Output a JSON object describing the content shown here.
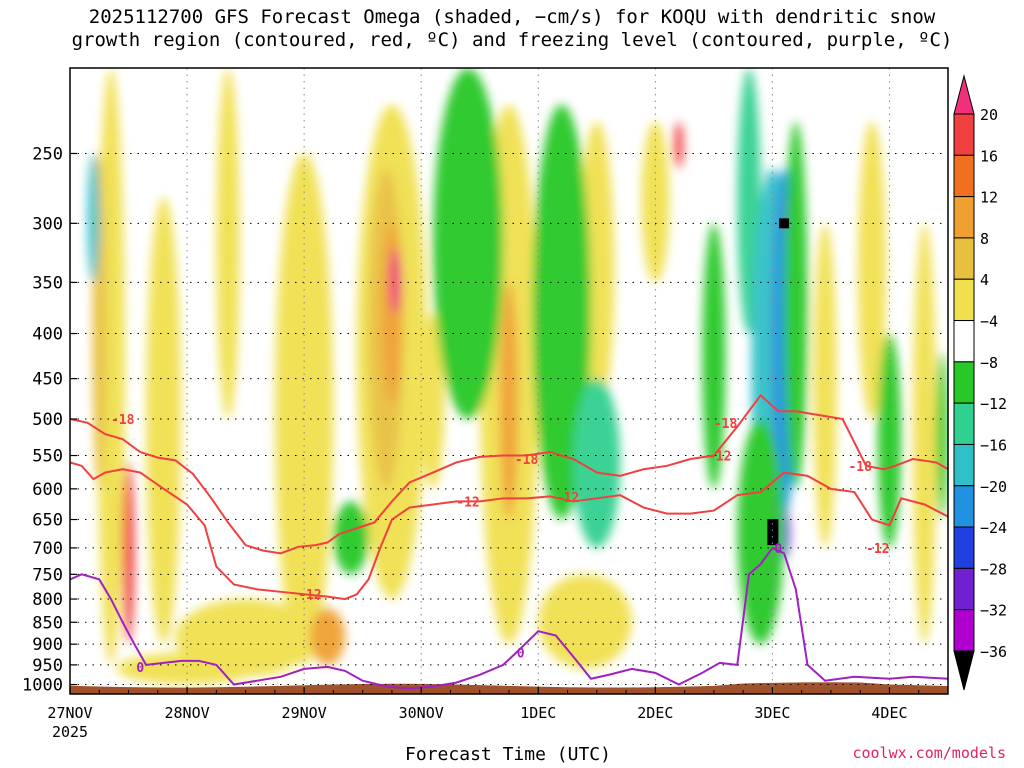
{
  "title_line1": "2025112700 GFS Forecast Omega (shaded, −cm/s) for KOQU with dendritic snow",
  "title_line2": "growth region (contoured, red, ºC) and freezing level (contoured, purple, ºC)",
  "credit": "coolwx.com/models",
  "chart_data": {
    "type": "heatmap",
    "xlabel": "Forecast Time (UTC)",
    "ylabel": "",
    "x_ticks": [
      "27NOV",
      "28NOV",
      "29NOV",
      "30NOV",
      "1DEC",
      "2DEC",
      "3DEC",
      "4DEC"
    ],
    "x_tick_year": "2025",
    "x_range_days": [
      0,
      7.5
    ],
    "y_ticks": [
      250,
      300,
      350,
      400,
      450,
      500,
      550,
      600,
      650,
      700,
      750,
      800,
      850,
      900,
      950,
      1000
    ],
    "y_range_hpa": [
      200,
      1025
    ],
    "y_scale": "log",
    "grid": true,
    "colorbar_labels": [
      "20",
      "16",
      "12",
      "8",
      "4",
      "−4",
      "−8",
      "−12",
      "−16",
      "−20",
      "−24",
      "−28",
      "−32",
      "−36"
    ],
    "colorbar_colors": [
      "#f0307a",
      "#f04040",
      "#f07020",
      "#f0a030",
      "#e8c040",
      "#f0e050",
      "#ffffff",
      "#28c828",
      "#30d090",
      "#30c0c8",
      "#2090e0",
      "#2040e0",
      "#7020d0",
      "#b000d0",
      "#b0b0b0",
      "#000000"
    ],
    "surface_color": "#a0522d",
    "contour_colors": {
      "dgz": "#f04040",
      "freezing": "#a020c0"
    },
    "contours": [
      {
        "label": "-18",
        "color": "#f04040",
        "points": [
          [
            0,
            500
          ],
          [
            0.15,
            505
          ],
          [
            0.3,
            520
          ],
          [
            0.45,
            527
          ],
          [
            0.6,
            545
          ],
          [
            0.75,
            553
          ],
          [
            0.9,
            557
          ],
          [
            1.05,
            577
          ],
          [
            1.2,
            613
          ],
          [
            1.35,
            655
          ],
          [
            1.5,
            695
          ],
          [
            1.65,
            705
          ],
          [
            1.8,
            710
          ],
          [
            1.95,
            698
          ],
          [
            2.1,
            695
          ],
          [
            2.2,
            690
          ],
          [
            2.3,
            675
          ],
          [
            2.45,
            665
          ],
          [
            2.6,
            655
          ],
          [
            2.75,
            620
          ],
          [
            2.9,
            590
          ],
          [
            3.1,
            575
          ],
          [
            3.3,
            560
          ],
          [
            3.5,
            552
          ],
          [
            3.7,
            550
          ],
          [
            3.9,
            550
          ],
          [
            4.1,
            545
          ],
          [
            4.3,
            555
          ],
          [
            4.5,
            575
          ],
          [
            4.7,
            580
          ],
          [
            4.9,
            570
          ],
          [
            5.1,
            565
          ],
          [
            5.3,
            555
          ],
          [
            5.5,
            550
          ],
          [
            5.7,
            510
          ],
          [
            5.9,
            470
          ],
          [
            6.05,
            490
          ],
          [
            6.2,
            490
          ],
          [
            6.4,
            495
          ],
          [
            6.6,
            500
          ],
          [
            6.8,
            565
          ],
          [
            6.95,
            570
          ],
          [
            7.05,
            565
          ],
          [
            7.2,
            555
          ],
          [
            7.4,
            560
          ],
          [
            7.5,
            570
          ]
        ],
        "label_at": [
          [
            0.45,
            500
          ],
          [
            3.9,
            555
          ],
          [
            5.6,
            505
          ],
          [
            6.75,
            565
          ]
        ]
      },
      {
        "label": "-12",
        "color": "#f04040",
        "points": [
          [
            0,
            560
          ],
          [
            0.1,
            565
          ],
          [
            0.2,
            585
          ],
          [
            0.3,
            575
          ],
          [
            0.45,
            570
          ],
          [
            0.6,
            575
          ],
          [
            0.8,
            600
          ],
          [
            1.0,
            625
          ],
          [
            1.15,
            660
          ],
          [
            1.25,
            735
          ],
          [
            1.4,
            770
          ],
          [
            1.6,
            780
          ],
          [
            1.8,
            785
          ],
          [
            2.0,
            790
          ],
          [
            2.2,
            795
          ],
          [
            2.35,
            800
          ],
          [
            2.45,
            790
          ],
          [
            2.55,
            760
          ],
          [
            2.65,
            700
          ],
          [
            2.75,
            650
          ],
          [
            2.9,
            630
          ],
          [
            3.1,
            625
          ],
          [
            3.3,
            620
          ],
          [
            3.5,
            620
          ],
          [
            3.7,
            615
          ],
          [
            3.9,
            615
          ],
          [
            4.1,
            612
          ],
          [
            4.3,
            620
          ],
          [
            4.5,
            615
          ],
          [
            4.7,
            610
          ],
          [
            4.9,
            630
          ],
          [
            5.1,
            640
          ],
          [
            5.3,
            640
          ],
          [
            5.5,
            635
          ],
          [
            5.7,
            610
          ],
          [
            5.9,
            605
          ],
          [
            6.1,
            575
          ],
          [
            6.3,
            580
          ],
          [
            6.5,
            600
          ],
          [
            6.7,
            605
          ],
          [
            6.85,
            650
          ],
          [
            7.0,
            660
          ],
          [
            7.1,
            615
          ],
          [
            7.3,
            625
          ],
          [
            7.5,
            645
          ]
        ],
        "label_at": [
          [
            2.05,
            790
          ],
          [
            3.4,
            620
          ],
          [
            4.25,
            613
          ],
          [
            5.55,
            550
          ],
          [
            6.9,
            700
          ]
        ]
      },
      {
        "label": "0",
        "color": "#a020c0",
        "points": [
          [
            0,
            760
          ],
          [
            0.1,
            750
          ],
          [
            0.25,
            760
          ],
          [
            0.35,
            800
          ],
          [
            0.45,
            850
          ],
          [
            0.55,
            900
          ],
          [
            0.65,
            950
          ],
          [
            0.8,
            945
          ],
          [
            0.95,
            940
          ],
          [
            1.1,
            940
          ],
          [
            1.25,
            950
          ],
          [
            1.4,
            1000
          ],
          [
            1.6,
            990
          ],
          [
            1.8,
            980
          ],
          [
            2.0,
            960
          ],
          [
            2.2,
            955
          ],
          [
            2.35,
            965
          ],
          [
            2.5,
            990
          ],
          [
            2.7,
            1005
          ],
          [
            2.9,
            1010
          ],
          [
            3.1,
            1005
          ],
          [
            3.3,
            995
          ],
          [
            3.5,
            975
          ],
          [
            3.7,
            950
          ],
          [
            3.85,
            910
          ],
          [
            4.0,
            870
          ],
          [
            4.15,
            880
          ],
          [
            4.3,
            930
          ],
          [
            4.45,
            985
          ],
          [
            4.6,
            975
          ],
          [
            4.8,
            960
          ],
          [
            5.0,
            970
          ],
          [
            5.2,
            1000
          ],
          [
            5.4,
            970
          ],
          [
            5.55,
            945
          ],
          [
            5.7,
            950
          ],
          [
            5.8,
            750
          ],
          [
            5.9,
            730
          ],
          [
            6.0,
            700
          ],
          [
            6.1,
            710
          ],
          [
            6.2,
            780
          ],
          [
            6.3,
            950
          ],
          [
            6.45,
            990
          ],
          [
            6.7,
            980
          ],
          [
            7.0,
            985
          ],
          [
            7.2,
            980
          ],
          [
            7.5,
            985
          ]
        ],
        "label_at": [
          [
            0.6,
            955
          ],
          [
            3.85,
            920
          ],
          [
            6.05,
            700
          ]
        ]
      }
    ]
  }
}
